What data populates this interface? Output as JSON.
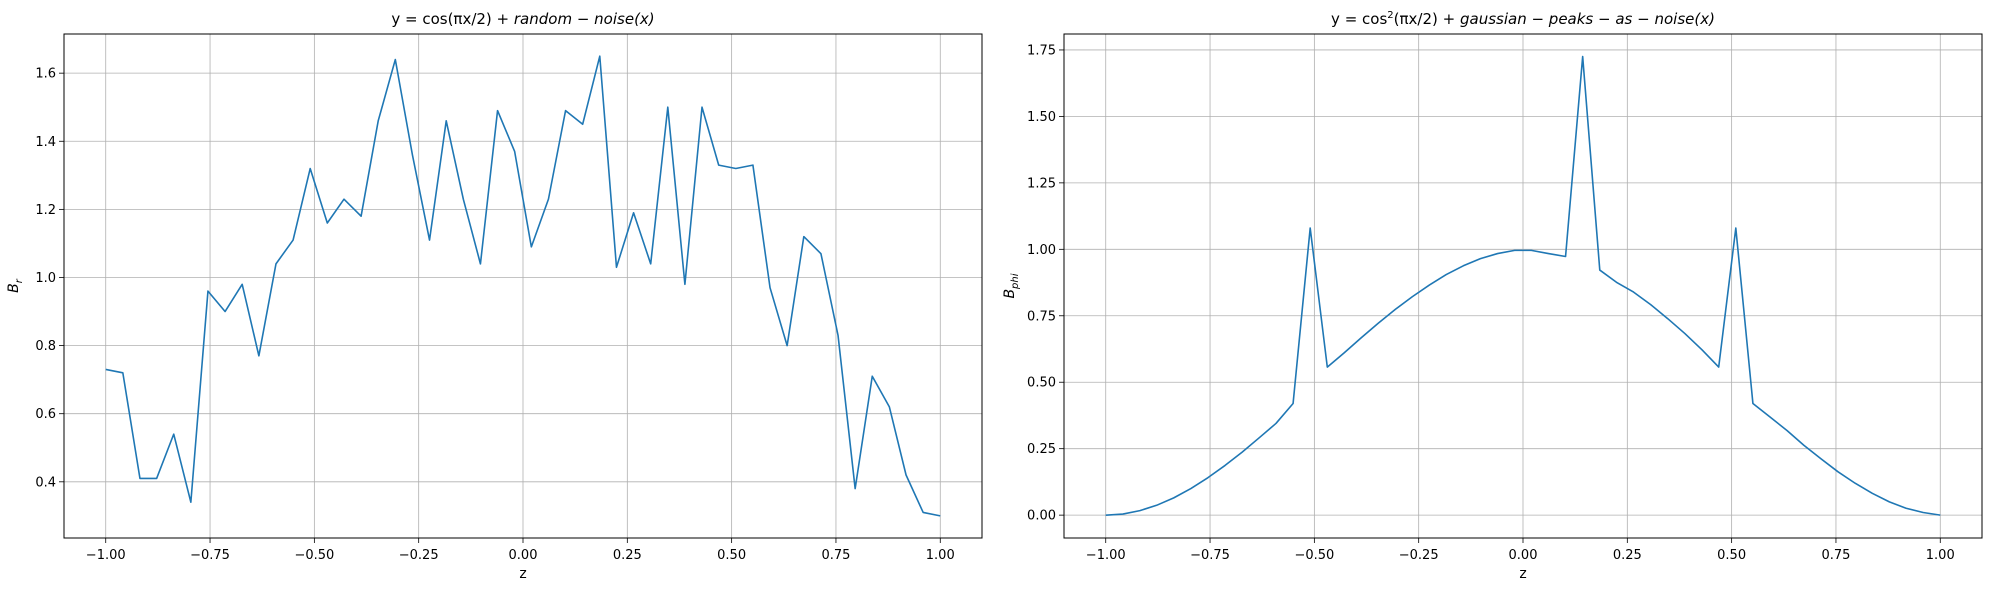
{
  "chart_data": [
    {
      "type": "line",
      "title": "y = cos(πx/2) + random − noise(x)",
      "title_parts": {
        "pre": "y = cos(πx/2) + ",
        "italic": "random − noise(x)",
        "sup": ""
      },
      "xlabel": "z",
      "ylabel": "B",
      "ylabel_sub": "r",
      "xlim": [
        -1.1,
        1.1
      ],
      "ylim": [
        0.235,
        1.715
      ],
      "xticks": [
        -1.0,
        -0.75,
        -0.5,
        -0.25,
        0.0,
        0.25,
        0.5,
        0.75,
        1.0
      ],
      "xtick_labels": [
        "−1.00",
        "−0.75",
        "−0.50",
        "−0.25",
        "0.00",
        "0.25",
        "0.50",
        "0.75",
        "1.00"
      ],
      "yticks": [
        0.4,
        0.6,
        0.8,
        1.0,
        1.2,
        1.4,
        1.6
      ],
      "ytick_labels": [
        "0.4",
        "0.6",
        "0.8",
        "1.0",
        "1.2",
        "1.4",
        "1.6"
      ],
      "grid": true,
      "color": "#1f77b4",
      "series": [
        {
          "x": [
            -1.0,
            -0.959,
            -0.918,
            -0.878,
            -0.837,
            -0.796,
            -0.755,
            -0.714,
            -0.673,
            -0.633,
            -0.592,
            -0.551,
            -0.51,
            -0.469,
            -0.429,
            -0.388,
            -0.347,
            -0.306,
            -0.265,
            -0.224,
            -0.184,
            -0.143,
            -0.102,
            -0.061,
            -0.02,
            0.02,
            0.061,
            0.102,
            0.143,
            0.184,
            0.224,
            0.265,
            0.306,
            0.347,
            0.388,
            0.429,
            0.469,
            0.51,
            0.551,
            0.592,
            0.633,
            0.673,
            0.714,
            0.755,
            0.796,
            0.837,
            0.878,
            0.918,
            0.959,
            1.0
          ],
          "y": [
            0.73,
            0.72,
            0.41,
            0.41,
            0.54,
            0.34,
            0.96,
            0.9,
            0.98,
            0.77,
            1.04,
            1.11,
            1.32,
            1.16,
            1.23,
            1.18,
            1.46,
            1.64,
            1.36,
            1.11,
            1.46,
            1.23,
            1.04,
            1.49,
            1.37,
            1.09,
            1.23,
            1.49,
            1.45,
            1.65,
            1.03,
            1.19,
            1.04,
            1.5,
            0.98,
            1.5,
            1.33,
            1.32,
            1.33,
            0.97,
            0.8,
            1.12,
            1.07,
            0.83,
            0.38,
            0.71,
            0.62,
            0.42,
            0.31,
            0.3
          ]
        }
      ]
    },
    {
      "type": "line",
      "title": "y = cos²(πx/2) + gaussian − peaks − as − noise(x)",
      "title_parts": {
        "pre": "y = cos",
        "sup": "2",
        "post": "(πx/2) + ",
        "italic": "gaussian − peaks − as − noise(x)"
      },
      "xlabel": "z",
      "ylabel": "B",
      "ylabel_sub": "phi",
      "xlim": [
        -1.1,
        1.1
      ],
      "ylim": [
        -0.086,
        1.81
      ],
      "xticks": [
        -1.0,
        -0.75,
        -0.5,
        -0.25,
        0.0,
        0.25,
        0.5,
        0.75,
        1.0
      ],
      "xtick_labels": [
        "−1.00",
        "−0.75",
        "−0.50",
        "−0.25",
        "0.00",
        "0.25",
        "0.50",
        "0.75",
        "1.00"
      ],
      "yticks": [
        0.0,
        0.25,
        0.5,
        0.75,
        1.0,
        1.25,
        1.5,
        1.75
      ],
      "ytick_labels": [
        "0.00",
        "0.25",
        "0.50",
        "0.75",
        "1.00",
        "1.25",
        "1.50",
        "1.75"
      ],
      "grid": true,
      "color": "#1f77b4",
      "series": [
        {
          "x": [
            -1.0,
            -0.959,
            -0.918,
            -0.878,
            -0.837,
            -0.796,
            -0.755,
            -0.714,
            -0.673,
            -0.633,
            -0.592,
            -0.551,
            -0.51,
            -0.469,
            -0.429,
            -0.388,
            -0.347,
            -0.306,
            -0.265,
            -0.224,
            -0.184,
            -0.143,
            -0.102,
            -0.061,
            -0.02,
            0.02,
            0.061,
            0.102,
            0.143,
            0.184,
            0.224,
            0.265,
            0.306,
            0.347,
            0.388,
            0.429,
            0.469,
            0.51,
            0.551,
            0.592,
            0.633,
            0.673,
            0.714,
            0.755,
            0.796,
            0.837,
            0.878,
            0.918,
            0.959,
            1.0
          ],
          "y": [
            0.0,
            0.004,
            0.017,
            0.037,
            0.065,
            0.1,
            0.141,
            0.187,
            0.237,
            0.29,
            0.345,
            0.42,
            1.08,
            0.557,
            0.61,
            0.667,
            0.722,
            0.774,
            0.822,
            0.866,
            0.905,
            0.938,
            0.965,
            0.984,
            0.996,
            0.996,
            0.984,
            0.973,
            1.725,
            0.922,
            0.876,
            0.839,
            0.792,
            0.739,
            0.683,
            0.622,
            0.557,
            1.08,
            0.42,
            0.369,
            0.318,
            0.263,
            0.212,
            0.163,
            0.12,
            0.082,
            0.05,
            0.026,
            0.01,
            0.0
          ]
        }
      ]
    }
  ]
}
